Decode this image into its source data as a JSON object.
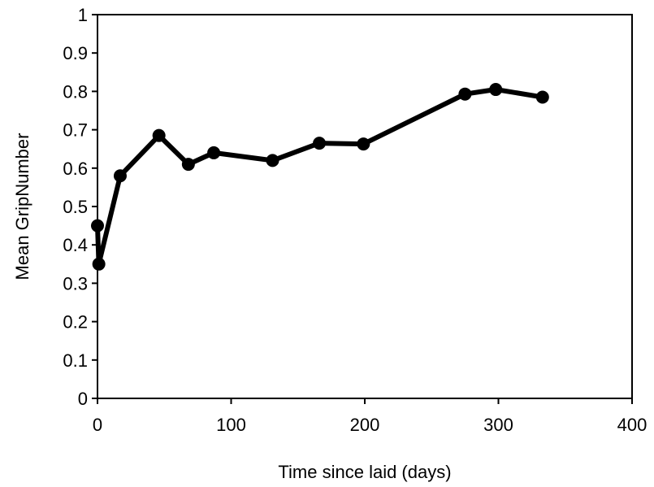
{
  "chart_data": {
    "type": "line",
    "title": "",
    "xlabel": "Time since laid (days)",
    "ylabel": "Mean GripNumber",
    "xlim": [
      0,
      400
    ],
    "ylim": [
      0,
      1
    ],
    "x_ticks": [
      "0",
      "100",
      "200",
      "300",
      "400"
    ],
    "y_ticks": [
      "0",
      "0.1",
      "0.2",
      "0.3",
      "0.4",
      "0.5",
      "0.6",
      "0.7",
      "0.8",
      "0.9",
      "1"
    ],
    "grid": false,
    "legend": "none",
    "line_color": "#000000",
    "marker": "filled-circle",
    "series": [
      {
        "x": [
          0,
          1,
          17,
          46,
          68,
          87,
          131,
          166,
          199,
          275,
          298,
          333
        ],
        "y": [
          0.45,
          0.35,
          0.58,
          0.685,
          0.61,
          0.64,
          0.62,
          0.665,
          0.663,
          0.793,
          0.805,
          0.785
        ]
      }
    ]
  }
}
